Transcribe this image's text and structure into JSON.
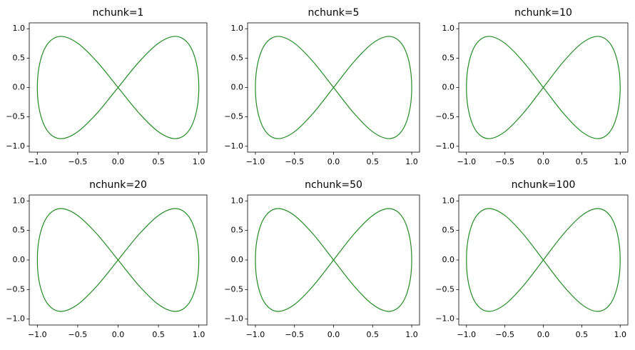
{
  "chart_data": [
    {
      "type": "line",
      "title": "nchunk=1",
      "x": [
        0,
        0.259,
        0.5,
        0.707,
        0.866,
        0.966,
        1,
        0.966,
        0.866,
        0.707,
        0.5,
        0.259,
        0,
        -0.259,
        -0.5,
        -0.707,
        -0.866,
        -0.966,
        -1,
        -0.966,
        -0.866,
        -0.707,
        -0.5,
        -0.259,
        0
      ],
      "values": [
        0,
        0.435,
        0.753,
        0.87,
        0.753,
        0.435,
        0,
        -0.435,
        -0.753,
        -0.87,
        -0.753,
        -0.435,
        0,
        0.435,
        0.753,
        0.87,
        0.753,
        0.435,
        0,
        -0.435,
        -0.753,
        -0.87,
        -0.753,
        -0.435,
        0
      ],
      "color": "#228b22",
      "xlim": [
        -1.1,
        1.1
      ],
      "ylim": [
        -1.1,
        1.1
      ],
      "xticks": [
        {
          "value": -1.0,
          "label": "−1.0"
        },
        {
          "value": -0.5,
          "label": "−0.5"
        },
        {
          "value": 0,
          "label": "0.0"
        },
        {
          "value": 0.5,
          "label": "0.5"
        },
        {
          "value": 1,
          "label": "1.0"
        }
      ],
      "yticks": [
        {
          "value": -1.0,
          "label": "−1.0"
        },
        {
          "value": -0.5,
          "label": "−0.5"
        },
        {
          "value": 0,
          "label": "0.0"
        },
        {
          "value": 0.5,
          "label": "0.5"
        },
        {
          "value": 1,
          "label": "1.0"
        }
      ]
    },
    {
      "type": "line",
      "title": "nchunk=5",
      "x": [
        0,
        0.259,
        0.5,
        0.707,
        0.866,
        0.966,
        1,
        0.966,
        0.866,
        0.707,
        0.5,
        0.259,
        0,
        -0.259,
        -0.5,
        -0.707,
        -0.866,
        -0.966,
        -1,
        -0.966,
        -0.866,
        -0.707,
        -0.5,
        -0.259,
        0
      ],
      "values": [
        0,
        0.435,
        0.753,
        0.87,
        0.753,
        0.435,
        0,
        -0.435,
        -0.753,
        -0.87,
        -0.753,
        -0.435,
        0,
        0.435,
        0.753,
        0.87,
        0.753,
        0.435,
        0,
        -0.435,
        -0.753,
        -0.87,
        -0.753,
        -0.435,
        0
      ],
      "color": "#228b22",
      "xlim": [
        -1.1,
        1.1
      ],
      "ylim": [
        -1.1,
        1.1
      ],
      "xticks": [
        {
          "value": -1.0,
          "label": "−1.0"
        },
        {
          "value": -0.5,
          "label": "−0.5"
        },
        {
          "value": 0,
          "label": "0.0"
        },
        {
          "value": 0.5,
          "label": "0.5"
        },
        {
          "value": 1,
          "label": "1.0"
        }
      ],
      "yticks": [
        {
          "value": -1.0,
          "label": "−1.0"
        },
        {
          "value": -0.5,
          "label": "−0.5"
        },
        {
          "value": 0,
          "label": "0.0"
        },
        {
          "value": 0.5,
          "label": "0.5"
        },
        {
          "value": 1,
          "label": "1.0"
        }
      ]
    },
    {
      "type": "line",
      "title": "nchunk=10",
      "x": [
        0,
        0.259,
        0.5,
        0.707,
        0.866,
        0.966,
        1,
        0.966,
        0.866,
        0.707,
        0.5,
        0.259,
        0,
        -0.259,
        -0.5,
        -0.707,
        -0.866,
        -0.966,
        -1,
        -0.966,
        -0.866,
        -0.707,
        -0.5,
        -0.259,
        0
      ],
      "values": [
        0,
        0.435,
        0.753,
        0.87,
        0.753,
        0.435,
        0,
        -0.435,
        -0.753,
        -0.87,
        -0.753,
        -0.435,
        0,
        0.435,
        0.753,
        0.87,
        0.753,
        0.435,
        0,
        -0.435,
        -0.753,
        -0.87,
        -0.753,
        -0.435,
        0
      ],
      "color": "#228b22",
      "xlim": [
        -1.1,
        1.1
      ],
      "ylim": [
        -1.1,
        1.1
      ],
      "xticks": [
        {
          "value": -1.0,
          "label": "−1.0"
        },
        {
          "value": -0.5,
          "label": "−0.5"
        },
        {
          "value": 0,
          "label": "0.0"
        },
        {
          "value": 0.5,
          "label": "0.5"
        },
        {
          "value": 1,
          "label": "1.0"
        }
      ],
      "yticks": [
        {
          "value": -1.0,
          "label": "−1.0"
        },
        {
          "value": -0.5,
          "label": "−0.5"
        },
        {
          "value": 0,
          "label": "0.0"
        },
        {
          "value": 0.5,
          "label": "0.5"
        },
        {
          "value": 1,
          "label": "1.0"
        }
      ]
    },
    {
      "type": "line",
      "title": "nchunk=20",
      "x": [
        0,
        0.259,
        0.5,
        0.707,
        0.866,
        0.966,
        1,
        0.966,
        0.866,
        0.707,
        0.5,
        0.259,
        0,
        -0.259,
        -0.5,
        -0.707,
        -0.866,
        -0.966,
        -1,
        -0.966,
        -0.866,
        -0.707,
        -0.5,
        -0.259,
        0
      ],
      "values": [
        0,
        0.435,
        0.753,
        0.87,
        0.753,
        0.435,
        0,
        -0.435,
        -0.753,
        -0.87,
        -0.753,
        -0.435,
        0,
        0.435,
        0.753,
        0.87,
        0.753,
        0.435,
        0,
        -0.435,
        -0.753,
        -0.87,
        -0.753,
        -0.435,
        0
      ],
      "color": "#228b22",
      "xlim": [
        -1.1,
        1.1
      ],
      "ylim": [
        -1.1,
        1.1
      ],
      "xticks": [
        {
          "value": -1.0,
          "label": "−1.0"
        },
        {
          "value": -0.5,
          "label": "−0.5"
        },
        {
          "value": 0,
          "label": "0.0"
        },
        {
          "value": 0.5,
          "label": "0.5"
        },
        {
          "value": 1,
          "label": "1.0"
        }
      ],
      "yticks": [
        {
          "value": -1.0,
          "label": "−1.0"
        },
        {
          "value": -0.5,
          "label": "−0.5"
        },
        {
          "value": 0,
          "label": "0.0"
        },
        {
          "value": 0.5,
          "label": "0.5"
        },
        {
          "value": 1,
          "label": "1.0"
        }
      ]
    },
    {
      "type": "line",
      "title": "nchunk=50",
      "x": [
        0,
        0.259,
        0.5,
        0.707,
        0.866,
        0.966,
        1,
        0.966,
        0.866,
        0.707,
        0.5,
        0.259,
        0,
        -0.259,
        -0.5,
        -0.707,
        -0.866,
        -0.966,
        -1,
        -0.966,
        -0.866,
        -0.707,
        -0.5,
        -0.259,
        0
      ],
      "values": [
        0,
        0.435,
        0.753,
        0.87,
        0.753,
        0.435,
        0,
        -0.435,
        -0.753,
        -0.87,
        -0.753,
        -0.435,
        0,
        0.435,
        0.753,
        0.87,
        0.753,
        0.435,
        0,
        -0.435,
        -0.753,
        -0.87,
        -0.753,
        -0.435,
        0
      ],
      "color": "#228b22",
      "xlim": [
        -1.1,
        1.1
      ],
      "ylim": [
        -1.1,
        1.1
      ],
      "xticks": [
        {
          "value": -1.0,
          "label": "−1.0"
        },
        {
          "value": -0.5,
          "label": "−0.5"
        },
        {
          "value": 0,
          "label": "0.0"
        },
        {
          "value": 0.5,
          "label": "0.5"
        },
        {
          "value": 1,
          "label": "1.0"
        }
      ],
      "yticks": [
        {
          "value": -1.0,
          "label": "−1.0"
        },
        {
          "value": -0.5,
          "label": "−0.5"
        },
        {
          "value": 0,
          "label": "0.0"
        },
        {
          "value": 0.5,
          "label": "0.5"
        },
        {
          "value": 1,
          "label": "1.0"
        }
      ]
    },
    {
      "type": "line",
      "title": "nchunk=100",
      "x": [
        0,
        0.259,
        0.5,
        0.707,
        0.866,
        0.966,
        1,
        0.966,
        0.866,
        0.707,
        0.5,
        0.259,
        0,
        -0.259,
        -0.5,
        -0.707,
        -0.866,
        -0.966,
        -1,
        -0.966,
        -0.866,
        -0.707,
        -0.5,
        -0.259,
        0
      ],
      "values": [
        0,
        0.435,
        0.753,
        0.87,
        0.753,
        0.435,
        0,
        -0.435,
        -0.753,
        -0.87,
        -0.753,
        -0.435,
        0,
        0.435,
        0.753,
        0.87,
        0.753,
        0.435,
        0,
        -0.435,
        -0.753,
        -0.87,
        -0.753,
        -0.435,
        0
      ],
      "color": "#228b22",
      "xlim": [
        -1.1,
        1.1
      ],
      "ylim": [
        -1.1,
        1.1
      ],
      "xticks": [
        {
          "value": -1.0,
          "label": "−1.0"
        },
        {
          "value": -0.5,
          "label": "−0.5"
        },
        {
          "value": 0,
          "label": "0.0"
        },
        {
          "value": 0.5,
          "label": "0.5"
        },
        {
          "value": 1,
          "label": "1.0"
        }
      ],
      "yticks": [
        {
          "value": -1.0,
          "label": "−1.0"
        },
        {
          "value": -0.5,
          "label": "−0.5"
        },
        {
          "value": 0,
          "label": "0.0"
        },
        {
          "value": 0.5,
          "label": "0.5"
        },
        {
          "value": 1,
          "label": "1.0"
        }
      ]
    }
  ]
}
